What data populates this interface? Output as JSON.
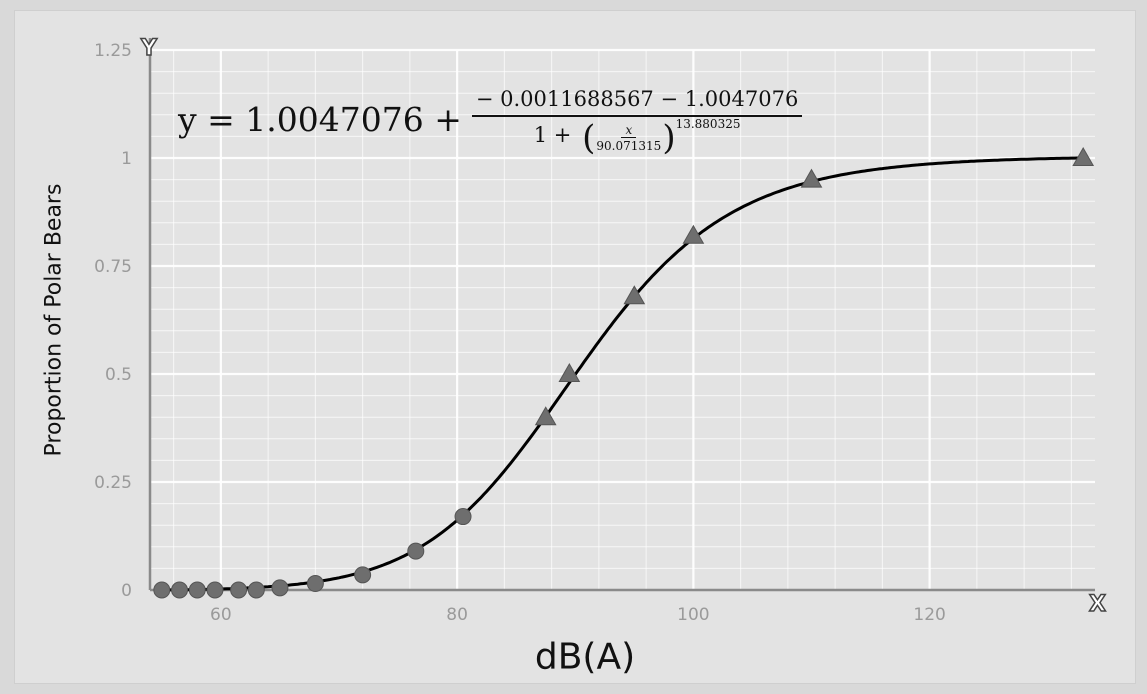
{
  "chart_data": {
    "type": "scatter",
    "xlabel": "dB(A)",
    "ylabel": "Proportion of Polar Bears",
    "xlim": [
      54,
      134
    ],
    "ylim": [
      0,
      1.25
    ],
    "x_ticks": [
      "60",
      "80",
      "100",
      "120"
    ],
    "y_ticks": [
      "0",
      "0.25",
      "0.5",
      "0.75",
      "1",
      "1.25"
    ],
    "grid": true,
    "axis_letters": {
      "x": "X",
      "y": "Y"
    },
    "series": [
      {
        "marker": "circle",
        "x": [
          55,
          56.5,
          58,
          59.5,
          61.5,
          63,
          65,
          68,
          72,
          76.5,
          80.5
        ],
        "y": [
          0,
          0,
          0,
          0,
          0,
          0,
          0.005,
          0.015,
          0.035,
          0.09,
          0.17
        ]
      },
      {
        "marker": "triangle",
        "x": [
          87.5,
          89.5,
          95,
          100,
          110,
          133
        ],
        "y": [
          0.4,
          0.5,
          0.68,
          0.82,
          0.95,
          1.0
        ]
      }
    ],
    "fit": {
      "upper": 1.0047076,
      "lower": -0.0011688567,
      "center": 90.071315,
      "slope": 13.880325
    },
    "formula": {
      "lhs": "y = 1.0047076 +",
      "numerator": "− 0.0011688567  − 1.0047076",
      "denominator_lead": "1 +",
      "inner_numerator": "x",
      "inner_denominator": "90.071315",
      "exponent": "13.880325"
    }
  },
  "colors": {
    "background": "#e3e3e3",
    "grid": "#ffffff",
    "axis": "#8a8a8a",
    "curve": "#000000",
    "marker": "#6e6e6e",
    "tick_text": "#9a9a9a"
  }
}
